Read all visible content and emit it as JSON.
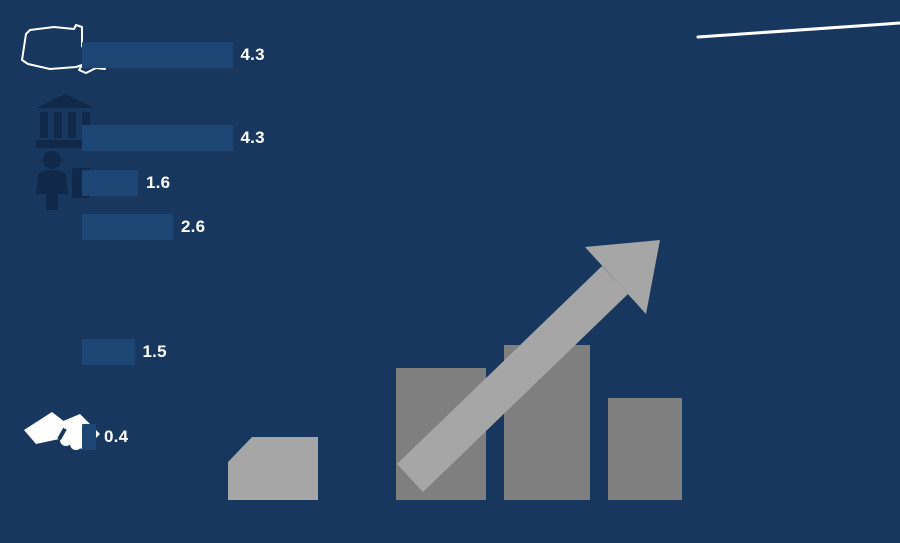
{
  "slide": {
    "background_color": "#17375e",
    "white": "#ffffff"
  },
  "chart_data": {
    "type": "bar",
    "orientation": "horizontal",
    "title": "",
    "categories": [
      "",
      "",
      "",
      "",
      "",
      ""
    ],
    "values": [
      4.3,
      4.3,
      1.6,
      2.6,
      1.5,
      0.4
    ],
    "value_labels": [
      "4.3",
      "4.3",
      "1.6",
      "2.6",
      "1.5",
      "0.4"
    ],
    "bar_color": "#1e4675",
    "value_label_color": "#ffffff",
    "xlim": [
      0,
      5
    ],
    "grid": "off",
    "legend": "none",
    "axis_visible": false
  },
  "decor": {
    "gray_bar_color": "#7f7f7f",
    "gray_arrow_color": "#a6a6a6",
    "ramp_color": "#a6a6a6",
    "dark_icon_color": "#10294a",
    "trend_line_color": "#ffffff"
  },
  "icons": {
    "state": "new-york-state-outline-icon",
    "left_icon_1": "bank-icon",
    "left_icon_2": "person-icon",
    "bottom_left": "handshake-icon",
    "bottom_graphic": "growth-bars-and-arrow",
    "top_right": "trend-line"
  }
}
